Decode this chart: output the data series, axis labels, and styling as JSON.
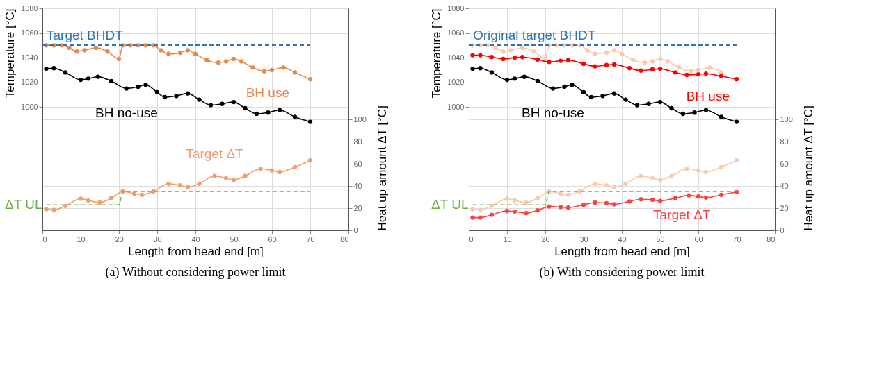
{
  "chart_data": [
    {
      "type": "line",
      "title": "(a) Without considering power limit",
      "xlabel": "Length from head end [m]",
      "ylabel": "Temperature [°C]",
      "y2label": "Heat up amount ΔT [°C]",
      "xlim": [
        0,
        80
      ],
      "xticks": [
        0,
        10,
        20,
        30,
        40,
        50,
        60,
        70,
        80
      ],
      "ylim": [
        900,
        1080
      ],
      "yticks": [
        1000,
        1020,
        1040,
        1060,
        1080
      ],
      "y2lim": [
        0,
        200
      ],
      "y2ticks": [
        0,
        20,
        40,
        60,
        80,
        100
      ],
      "grid": true,
      "series": [
        {
          "name": "BH no-use",
          "color": "#000000",
          "marker": "circle",
          "x": [
            1,
            3,
            6,
            10,
            12,
            14.5,
            18,
            22,
            25,
            27,
            30,
            32,
            35,
            38,
            41,
            44,
            47,
            50,
            53,
            56,
            59,
            62,
            66,
            70
          ],
          "values": [
            1031,
            1031.5,
            1028,
            1022,
            1023,
            1024.5,
            1021,
            1015,
            1016.5,
            1018,
            1012,
            1008,
            1009,
            1011,
            1006,
            1001.5,
            1002.5,
            1004,
            999,
            994.5,
            995.5,
            997.5,
            992,
            988
          ]
        },
        {
          "name": "BH use",
          "color": "#e8894a",
          "marker": "circle",
          "x": [
            1,
            3,
            5,
            7,
            9,
            11,
            14,
            17,
            20,
            21,
            23,
            25,
            27,
            29,
            31,
            33,
            36,
            38,
            40,
            43,
            46,
            48,
            50,
            52,
            55,
            58,
            60,
            63,
            66,
            70
          ],
          "values": [
            1050,
            1050,
            1050,
            1048,
            1045,
            1046,
            1048,
            1045,
            1039,
            1050,
            1050,
            1050,
            1050,
            1050,
            1046,
            1043,
            1044,
            1046,
            1043,
            1038,
            1036,
            1037,
            1039,
            1037,
            1032,
            1029,
            1030,
            1032,
            1028,
            1022.5
          ]
        },
        {
          "name": "Target ΔT",
          "color": "#f0a070",
          "marker": "circle",
          "axis": "y2",
          "x": [
            1,
            3,
            6,
            10,
            12,
            15,
            18,
            21,
            24,
            26,
            29,
            33,
            36,
            38,
            41,
            45,
            48,
            50,
            53,
            57,
            60,
            62,
            66,
            70
          ],
          "values": [
            19,
            18.5,
            22,
            28.5,
            27,
            25,
            29,
            35,
            33,
            32,
            35,
            42,
            40.5,
            39,
            42,
            49,
            47,
            45.5,
            49,
            55.5,
            54,
            52.5,
            57,
            63
          ]
        },
        {
          "name": "ΔT UL",
          "color": "#70ad47",
          "marker": "none",
          "line_style": "dashed",
          "axis": "y2",
          "x": [
            1,
            20,
            21,
            70
          ],
          "values": [
            23,
            23,
            35,
            35
          ]
        }
      ],
      "ref_lines": [
        {
          "axis": "y",
          "value": 1050,
          "label": "Target BHDT",
          "color": "#2e75b6",
          "line_style": "dashed"
        }
      ]
    },
    {
      "type": "line",
      "title": "(b) With considering power limit",
      "xlabel": "Length from head end [m]",
      "ylabel": "Temperature [°C]",
      "y2label": "Heat up amount ΔT [°C]",
      "xlim": [
        0,
        80
      ],
      "xticks": [
        0,
        10,
        20,
        30,
        40,
        50,
        60,
        70,
        80
      ],
      "ylim": [
        900,
        1080
      ],
      "yticks": [
        1000,
        1020,
        1040,
        1060,
        1080
      ],
      "y2lim": [
        0,
        200
      ],
      "y2ticks": [
        0,
        20,
        40,
        60,
        80,
        100
      ],
      "grid": true,
      "series": [
        {
          "name": "BH no-use",
          "color": "#000000",
          "marker": "circle",
          "x": [
            1,
            3,
            6,
            10,
            12,
            14.5,
            18,
            22,
            25,
            27,
            30,
            32,
            35,
            38,
            41,
            44,
            47,
            50,
            53,
            56,
            59,
            62,
            66,
            70
          ],
          "values": [
            1031,
            1031.5,
            1028,
            1022,
            1023,
            1024.5,
            1021,
            1015,
            1016.5,
            1018,
            1012,
            1008,
            1009,
            1011,
            1006,
            1001.5,
            1002.5,
            1004,
            999,
            994.5,
            995.5,
            997.5,
            992,
            988
          ]
        },
        {
          "color": "#f8cbad",
          "marker": "circle",
          "x": [
            1,
            3,
            5,
            7,
            9,
            11,
            14,
            17,
            20,
            21,
            23,
            25,
            27,
            29,
            31,
            33,
            36,
            38,
            40,
            43,
            46,
            48,
            50,
            52,
            55,
            58,
            60,
            63,
            66
          ],
          "values": [
            1050,
            1050,
            1050,
            1048,
            1045,
            1046,
            1048,
            1045,
            1039,
            1050,
            1050,
            1050,
            1050,
            1050,
            1046,
            1043,
            1044,
            1046,
            1043,
            1038,
            1036,
            1037,
            1039,
            1037,
            1032,
            1029,
            1030,
            1032,
            1028
          ]
        },
        {
          "name": "BH use",
          "color": "#ff0000",
          "marker": "circle",
          "x": [
            1,
            3,
            6,
            9,
            12,
            14,
            18,
            21,
            24,
            26,
            30,
            33,
            36,
            38,
            42,
            45,
            48,
            50,
            54,
            57,
            60,
            62,
            66,
            70
          ],
          "values": [
            1042,
            1042,
            1040.5,
            1039,
            1040,
            1040.5,
            1038.5,
            1036.5,
            1037.5,
            1038,
            1035,
            1033,
            1034,
            1034.5,
            1031.5,
            1029.5,
            1030.5,
            1031,
            1028,
            1026,
            1026.5,
            1027,
            1025,
            1022.5
          ]
        },
        {
          "color": "#f8cbad",
          "marker": "circle",
          "axis": "y2",
          "x": [
            1,
            3,
            6,
            10,
            12,
            15,
            18,
            21,
            24,
            26,
            29,
            33,
            36,
            38,
            41,
            45,
            48,
            50,
            53,
            57,
            60,
            62,
            66,
            70
          ],
          "values": [
            19,
            18.5,
            22,
            28.5,
            27,
            25,
            29,
            35,
            33,
            32,
            35,
            42,
            40.5,
            39,
            42,
            49,
            47,
            45.5,
            49,
            55.5,
            54,
            52.5,
            57,
            63
          ]
        },
        {
          "name": "Target ΔT",
          "color": "#ff4040",
          "marker": "circle",
          "axis": "y2",
          "x": [
            1,
            3,
            6,
            10,
            12,
            15,
            18,
            21,
            24,
            26,
            30,
            33,
            36,
            38,
            42,
            45,
            48,
            50,
            54,
            57.5,
            60,
            62,
            66,
            70
          ],
          "values": [
            11.5,
            11.5,
            14,
            17.5,
            17,
            15.5,
            18,
            21.5,
            21,
            20.5,
            23,
            25,
            24.5,
            23.5,
            26,
            28,
            27.5,
            26.5,
            29,
            31.5,
            30.5,
            29.5,
            32,
            34.5
          ]
        },
        {
          "name": "ΔT UL",
          "color": "#70ad47",
          "marker": "none",
          "line_style": "dashed",
          "axis": "y2",
          "x": [
            1,
            20,
            21,
            70
          ],
          "values": [
            23,
            23,
            35,
            35
          ]
        }
      ],
      "ref_lines": [
        {
          "axis": "y",
          "value": 1050,
          "label": "Original target BHDT",
          "color": "#2e75b6",
          "line_style": "dashed"
        }
      ]
    }
  ]
}
